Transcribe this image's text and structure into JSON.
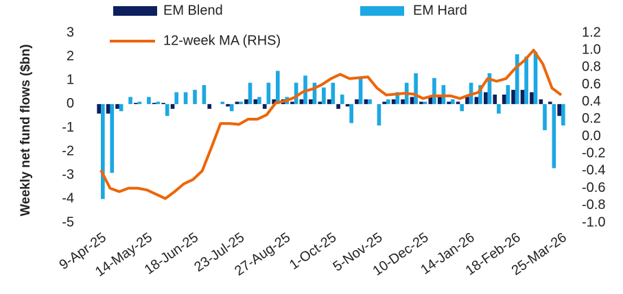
{
  "chart_data": {
    "type": "bar_line",
    "y_label": "Weekly net fund flows ($bn)",
    "categories": [
      "9-Apr-25",
      null,
      null,
      null,
      null,
      "14-May-25",
      null,
      null,
      null,
      null,
      "18-Jun-25",
      null,
      null,
      null,
      null,
      "23-Jul-25",
      null,
      null,
      null,
      null,
      "27-Aug-25",
      null,
      null,
      null,
      null,
      "1-Oct-25",
      null,
      null,
      null,
      null,
      "5-Nov-25",
      null,
      null,
      null,
      null,
      "10-Dec-25",
      null,
      null,
      null,
      null,
      "14-Jan-26",
      null,
      null,
      null,
      null,
      "18-Feb-26",
      null,
      null,
      null,
      null,
      "25-Mar-26"
    ],
    "series": [
      {
        "name": "EM Blend",
        "color": "#0d1f5c",
        "type": "bar",
        "values": [
          -0.4,
          -0.4,
          -0.2,
          0,
          0.05,
          0,
          0.05,
          0.05,
          -0.2,
          0,
          0,
          0,
          -0.2,
          0,
          -0.1,
          0.1,
          0.2,
          0.2,
          -0.2,
          0.2,
          0.2,
          0.1,
          0.2,
          0.2,
          0.1,
          0.2,
          -0.2,
          -0.1,
          0.2,
          0.2,
          0,
          0.1,
          0.2,
          0.2,
          0.3,
          0.1,
          0.3,
          0.3,
          0.1,
          0.1,
          0.3,
          0.3,
          0.5,
          0.4,
          0.4,
          0.6,
          0.6,
          0.5,
          0.2,
          0.1,
          -0.5
        ]
      },
      {
        "name": "EM Hard",
        "color": "#1ca8e3",
        "type": "bar",
        "values": [
          -4.0,
          -2.9,
          -0.3,
          0.3,
          0.1,
          0.3,
          0.1,
          -0.5,
          0.5,
          0.5,
          0.6,
          0.8,
          0,
          0.1,
          -0.3,
          0.1,
          0.9,
          0.3,
          0.9,
          1.4,
          0.3,
          0.9,
          1.2,
          0.9,
          0.7,
          0.9,
          0.4,
          -0.8,
          1.1,
          0.2,
          -0.9,
          0.2,
          0.5,
          0.9,
          1.3,
          0.1,
          1.1,
          0.8,
          0.2,
          -0.3,
          0.9,
          0.8,
          1.3,
          -0.4,
          0.8,
          2.1,
          2.0,
          2.2,
          -1.1,
          -2.7,
          -0.9
        ]
      },
      {
        "name": "12-week MA (RHS)",
        "color": "#ec6608",
        "type": "line",
        "axis": "y2",
        "values": [
          -0.39,
          -0.6,
          -0.64,
          -0.6,
          -0.6,
          -0.62,
          -0.67,
          -0.72,
          -0.64,
          -0.55,
          -0.5,
          -0.4,
          -0.13,
          0.15,
          0.15,
          0.14,
          0.2,
          0.2,
          0.25,
          0.39,
          0.41,
          0.45,
          0.52,
          0.55,
          0.6,
          0.67,
          0.72,
          0.67,
          0.68,
          0.69,
          0.56,
          0.48,
          0.49,
          0.5,
          0.49,
          0.44,
          0.47,
          0.47,
          0.47,
          0.44,
          0.48,
          0.51,
          0.67,
          0.64,
          0.67,
          0.79,
          0.88,
          1.0,
          0.84,
          0.56,
          0.48
        ]
      }
    ],
    "ylim": [
      -5,
      3
    ],
    "yticks": [
      3,
      2,
      1,
      0,
      -1,
      -2,
      -3,
      -4,
      -5
    ],
    "y2lim": [
      -1,
      1.2
    ],
    "y2ticks": [
      1.2,
      {
        "value": 1,
        "label": "1.0"
      },
      0.8,
      0.6,
      0.4,
      0.2,
      {
        "value": 0,
        "label": "0.0"
      },
      -0.2,
      -0.4,
      -0.6,
      -0.8,
      {
        "value": -1,
        "label": "-1.0"
      }
    ],
    "legend": "top"
  }
}
